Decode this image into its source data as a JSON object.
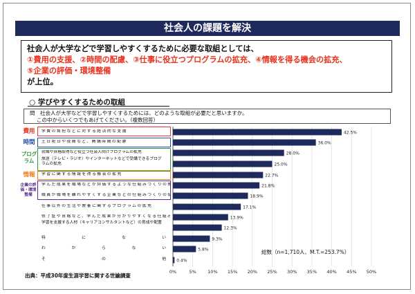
{
  "title": "社会人の課題を解決",
  "summary": {
    "line1": "社会人が大学などで学習しやすくするために必要な取組としては、",
    "line2": "①費用の支援、②時間の配慮、③仕事に役立つプログラムの拡充、④情報を得る機会の拡充、",
    "line3": "⑤企業の評価・環境整備",
    "line4": "が上位。"
  },
  "section_title": "○ 学びやすくするための取組",
  "question": {
    "line1": "問　社会人が大学などで学習しやすくするためには、どのような取組が必要だと思いますか。",
    "line2": "この中からいくつでもあげてください。（複数回答）"
  },
  "footer": "出典：平成30年度生涯学習に関する世論調査",
  "total_note": "総数（n=1,710人、M.T.=253.7%）",
  "categories": [
    {
      "label": "費用",
      "color": "#e8321e"
    },
    {
      "label": "時間",
      "color": "#1f4fa8"
    },
    {
      "label": "プログラム",
      "color": "#2d9a3a"
    },
    {
      "label": "情報",
      "color": "#ee7d1a"
    },
    {
      "label": "企業の評価・環境整備",
      "color": "#5b2d8c"
    }
  ],
  "chart_data": {
    "type": "bar",
    "orientation": "horizontal",
    "categories": [
      "学費の負担などに対する経済的な支援",
      "土日祝日や夜間など、開講時間の配慮",
      "就職や資格取得など役立つ社会人向けプログラムの拡充",
      "放送（テレビ・ラジオ）やインターネットなどで受講できるプログラムの拡充",
      "学習に関する情報を得る機会の拡充",
      "学んだ成果を職場などが評価するような仕組みづくりの推進",
      "職員が職場を離れやすくする企業などの仕組みづくりの促進",
      "仕事以外の生活や教養に関するプログラムの拡充",
      "修了証や資格など、学んだ成果が分かりやすくなる仕組みづくり",
      "学習を支援する人材（キャリアコンサルタントなど）の育成や配置",
      "特にない",
      "わからない",
      "その他"
    ],
    "values": [
      42.5,
      36.0,
      28.0,
      25.0,
      22.7,
      21.8,
      18.9,
      17.1,
      13.9,
      12.3,
      9.3,
      5.8,
      0.4
    ],
    "value_labels": [
      "42.5%",
      "36.0%",
      "28.0%",
      "25.0%",
      "22.7%",
      "21.8%",
      "18.9%",
      "17.1%",
      "13.9%",
      "12.3%",
      "9.3%",
      "5.8%",
      "0.4%"
    ],
    "xlim": [
      0,
      50
    ],
    "xticks": [
      "0%",
      "5%",
      "10%",
      "15%",
      "20%",
      "25%",
      "30%",
      "35%",
      "40%",
      "45%",
      "50%"
    ],
    "bar_color": "#1f2a5c",
    "grid": true
  }
}
